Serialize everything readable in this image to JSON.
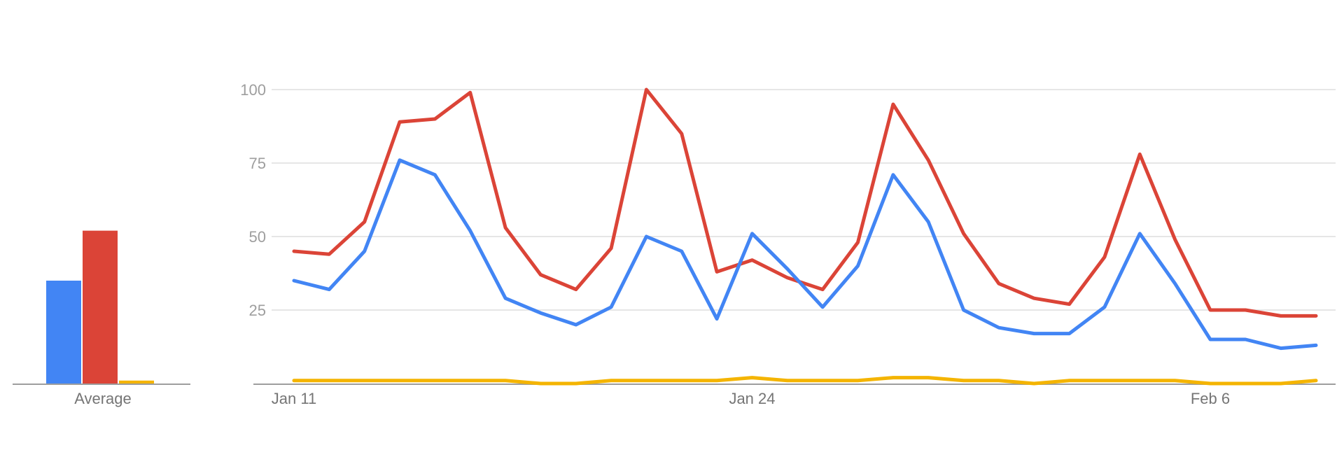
{
  "chart_data": [
    {
      "type": "bar",
      "categories": [
        "Average"
      ],
      "series": [
        {
          "color": "#4285f4",
          "values": [
            35
          ]
        },
        {
          "color": "#db4437",
          "values": [
            52
          ]
        },
        {
          "color": "#f4b400",
          "values": [
            1
          ]
        }
      ],
      "ylim": [
        0,
        100
      ],
      "xlabel": "",
      "ylabel": ""
    },
    {
      "type": "line",
      "x": [
        "Jan 11",
        "Jan 12",
        "Jan 13",
        "Jan 14",
        "Jan 15",
        "Jan 16",
        "Jan 17",
        "Jan 18",
        "Jan 19",
        "Jan 20",
        "Jan 21",
        "Jan 22",
        "Jan 23",
        "Jan 24",
        "Jan 25",
        "Jan 26",
        "Jan 27",
        "Jan 28",
        "Jan 29",
        "Jan 30",
        "Jan 31",
        "Feb 1",
        "Feb 2",
        "Feb 3",
        "Feb 4",
        "Feb 5",
        "Feb 6",
        "Feb 7",
        "Feb 8",
        "Feb 9"
      ],
      "x_tick_labels": [
        "Jan 11",
        "Jan 24",
        "Feb 6"
      ],
      "y_tick_labels": [
        "100",
        "75",
        "50",
        "25"
      ],
      "ylim": [
        0,
        100
      ],
      "grid": true,
      "series": [
        {
          "color": "#4285f4",
          "values": [
            35,
            32,
            45,
            76,
            71,
            52,
            29,
            24,
            20,
            26,
            50,
            45,
            22,
            51,
            39,
            26,
            40,
            71,
            55,
            25,
            19,
            17,
            17,
            26,
            51,
            34,
            15,
            15,
            12,
            13
          ]
        },
        {
          "color": "#db4437",
          "values": [
            45,
            44,
            55,
            89,
            90,
            99,
            53,
            37,
            32,
            46,
            100,
            85,
            38,
            42,
            36,
            32,
            48,
            95,
            76,
            51,
            34,
            29,
            27,
            43,
            78,
            49,
            25,
            25,
            23,
            23
          ]
        },
        {
          "color": "#f4b400",
          "values": [
            1,
            1,
            1,
            1,
            1,
            1,
            1,
            0,
            0,
            1,
            1,
            1,
            1,
            2,
            1,
            1,
            1,
            2,
            2,
            1,
            1,
            0,
            1,
            1,
            1,
            1,
            0,
            0,
            0,
            1
          ]
        }
      ],
      "xlabel": "",
      "ylabel": ""
    }
  ]
}
